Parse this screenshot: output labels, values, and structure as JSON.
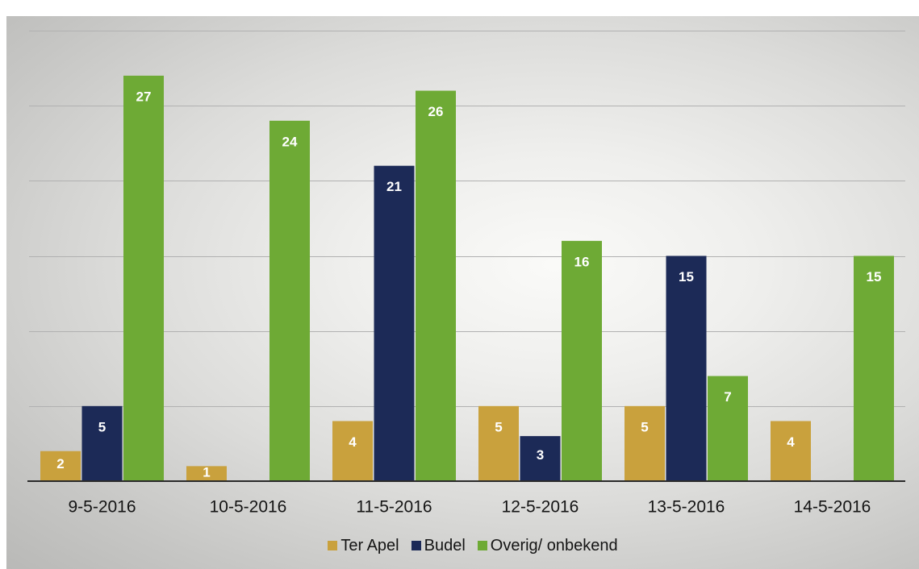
{
  "chart_data": {
    "type": "bar",
    "categories": [
      "9-5-2016",
      "10-5-2016",
      "11-5-2016",
      "12-5-2016",
      "13-5-2016",
      "14-5-2016"
    ],
    "series": [
      {
        "name": "Ter Apel",
        "color": "#C9A13D",
        "values": [
          2,
          1,
          4,
          5,
          5,
          4
        ]
      },
      {
        "name": "Budel",
        "color": "#1C2A57",
        "values": [
          5,
          null,
          21,
          3,
          15,
          null
        ]
      },
      {
        "name": "Overig/ onbekend",
        "color": "#6EAA35",
        "values": [
          27,
          24,
          26,
          16,
          7,
          15
        ]
      }
    ],
    "ylim": [
      0,
      30
    ],
    "y_grid_step": 5,
    "grid": true,
    "data_labels": true,
    "legend_position": "bottom"
  }
}
